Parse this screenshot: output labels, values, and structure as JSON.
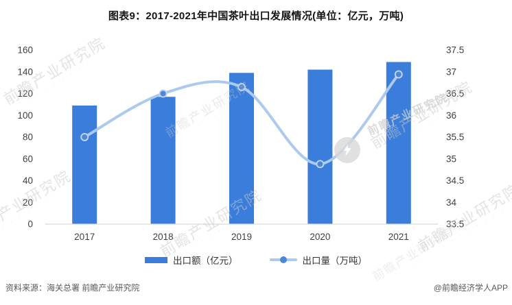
{
  "title": "图表9：2017-2021年中国茶叶出口发展情况(单位：亿元，万吨)",
  "chart_data": {
    "type": "bar",
    "subtype": "bar-line-combo",
    "title": "图表9：2017-2021年中国茶叶出口发展情况(单位：亿元，万吨)",
    "categories": [
      "2017",
      "2018",
      "2019",
      "2020",
      "2021"
    ],
    "series": [
      {
        "name": "出口额（亿元）",
        "type": "bar",
        "axis": "left",
        "color": "#3A7DDB",
        "values": [
          109,
          117,
          139,
          142,
          149
        ]
      },
      {
        "name": "出口量（万吨）",
        "type": "line",
        "axis": "right",
        "color": "#ACC9EF",
        "marker_color": "#4E86D8",
        "marker_ring_color": "#BDD3F1",
        "values": [
          35.5,
          36.5,
          36.65,
          34.88,
          36.94
        ]
      }
    ],
    "left_axis": {
      "min": 0,
      "max": 160,
      "step": 20,
      "tick_labels": [
        "0",
        "20",
        "40",
        "60",
        "80",
        "100",
        "120",
        "140",
        "160"
      ]
    },
    "right_axis": {
      "min": 33.5,
      "max": 37.5,
      "step": 0.5,
      "tick_labels": [
        "33.5",
        "34",
        "34.5",
        "35",
        "35.5",
        "36",
        "36.5",
        "37",
        "37.5"
      ]
    },
    "grid": false,
    "legend_position": "bottom",
    "axis_line_color": "#d9d9d9"
  },
  "footer": {
    "source": "资料来源：海关总署 前瞻产业研究院",
    "credit": "@前瞻经济学人APP"
  },
  "watermark": {
    "text": "前瞻产业研究院",
    "sub": "· · · · · · · ·"
  }
}
